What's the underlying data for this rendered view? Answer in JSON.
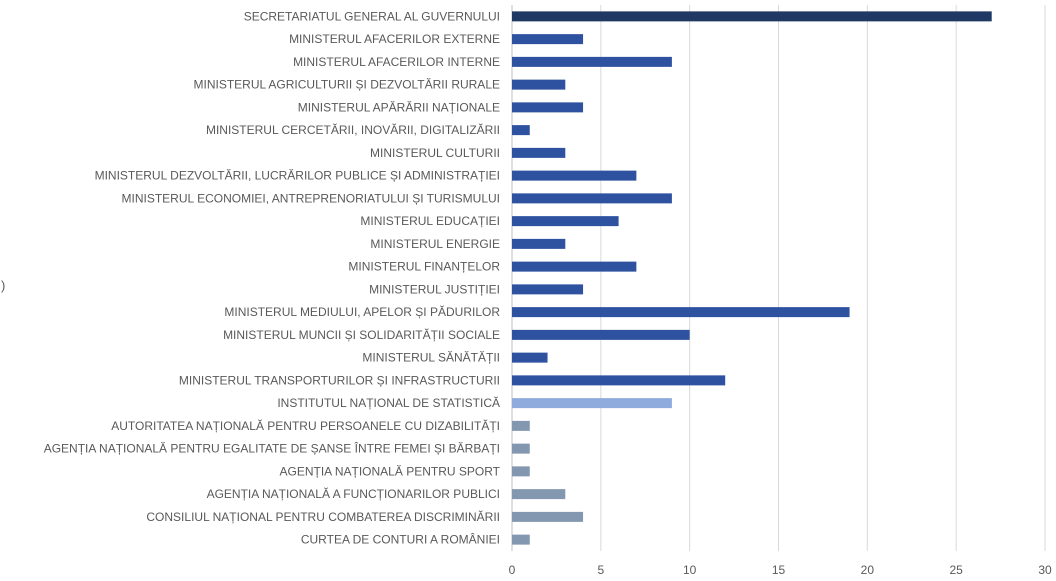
{
  "chart_data": {
    "type": "bar",
    "orientation": "horizontal",
    "title": "",
    "xlabel": "",
    "ylabel": "",
    "xlim": [
      0,
      30
    ],
    "x_ticks": [
      0,
      5,
      10,
      15,
      20,
      25,
      30
    ],
    "grid": "vertical",
    "legend": "none",
    "colors": {
      "dark": "#203864",
      "medium": "#2f52a0",
      "light": "#8faadc",
      "grey": "#8497b0"
    },
    "categories": [
      "SECRETARIATUL GENERAL AL GUVERNULUI",
      "MINISTERUL AFACERILOR EXTERNE",
      "MINISTERUL AFACERILOR INTERNE",
      "MINISTERUL AGRICULTURII ȘI DEZVOLTĂRII RURALE",
      "MINISTERUL APĂRĂRII NAȚIONALE",
      "MINISTERUL CERCETĂRII, INOVĂRII, DIGITALIZĂRII",
      "MINISTERUL CULTURII",
      "MINISTERUL DEZVOLTĂRII, LUCRĂRILOR PUBLICE ȘI ADMINISTRAȚIEI",
      "MINISTERUL ECONOMIEI, ANTREPRENORIATULUI ȘI TURISMULUI",
      "MINISTERUL EDUCAȚIEI",
      "MINISTERUL ENERGIE",
      "MINISTERUL FINANȚELOR",
      "MINISTERUL JUSTIȚIEI",
      "MINISTERUL MEDIULUI, APELOR ȘI PĂDURILOR",
      "MINISTERUL MUNCII ȘI SOLIDARITĂȚII SOCIALE",
      "MINISTERUL SĂNĂTĂȚII",
      "MINISTERUL TRANSPORTURILOR ȘI INFRASTRUCTURII",
      "INSTITUTUL NAȚIONAL DE STATISTICĂ",
      "AUTORITATEA NAȚIONALĂ PENTRU PERSOANELE CU DIZABILITĂȚI",
      "AGENȚIA NAȚIONALĂ PENTRU EGALITATE DE ȘANSE ÎNTRE FEMEI ȘI BĂRBAȚI",
      "AGENȚIA NAȚIONALĂ PENTRU SPORT",
      "AGENȚIA NAȚIONALĂ A FUNCȚIONARILOR PUBLICI",
      "CONSILIUL NAȚIONAL PENTRU COMBATEREA DISCRIMINĂRII",
      "CURTEA DE CONTURI A ROMÂNIEI"
    ],
    "values": [
      27,
      4,
      9,
      3,
      4,
      1,
      3,
      7,
      9,
      6,
      3,
      7,
      4,
      19,
      10,
      2,
      12,
      9,
      1,
      1,
      1,
      3,
      4,
      1
    ],
    "bar_colors": [
      "dark",
      "medium",
      "medium",
      "medium",
      "medium",
      "medium",
      "medium",
      "medium",
      "medium",
      "medium",
      "medium",
      "medium",
      "medium",
      "medium",
      "medium",
      "medium",
      "medium",
      "light",
      "grey",
      "grey",
      "grey",
      "grey",
      "grey",
      "grey"
    ]
  },
  "edge_mark": ")"
}
